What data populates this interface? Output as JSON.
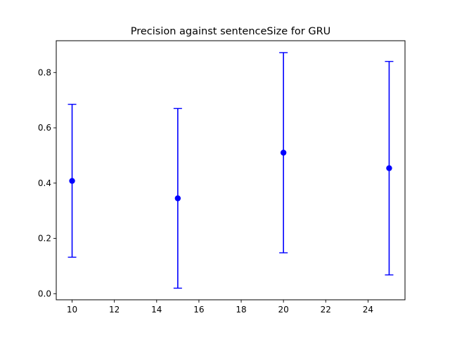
{
  "chart_data": {
    "type": "scatter",
    "title": "Precision against sentenceSize for GRU",
    "xlabel": "",
    "ylabel": "",
    "xlim": [
      9.25,
      25.75
    ],
    "ylim": [
      -0.022,
      0.915
    ],
    "xticks": [
      10,
      12,
      14,
      16,
      18,
      20,
      22,
      24
    ],
    "yticks": [
      0.0,
      0.2,
      0.4,
      0.6,
      0.8
    ],
    "xtick_labels": [
      "10",
      "12",
      "14",
      "16",
      "18",
      "20",
      "22",
      "24"
    ],
    "ytick_labels": [
      "0.0",
      "0.2",
      "0.4",
      "0.6",
      "0.8"
    ],
    "grid": false,
    "color": "#0000ff",
    "points": [
      {
        "x": 10,
        "y": 0.408,
        "lower": 0.132,
        "upper": 0.685
      },
      {
        "x": 15,
        "y": 0.345,
        "lower": 0.02,
        "upper": 0.67
      },
      {
        "x": 20,
        "y": 0.51,
        "lower": 0.148,
        "upper": 0.872
      },
      {
        "x": 25,
        "y": 0.454,
        "lower": 0.068,
        "upper": 0.84
      }
    ]
  }
}
